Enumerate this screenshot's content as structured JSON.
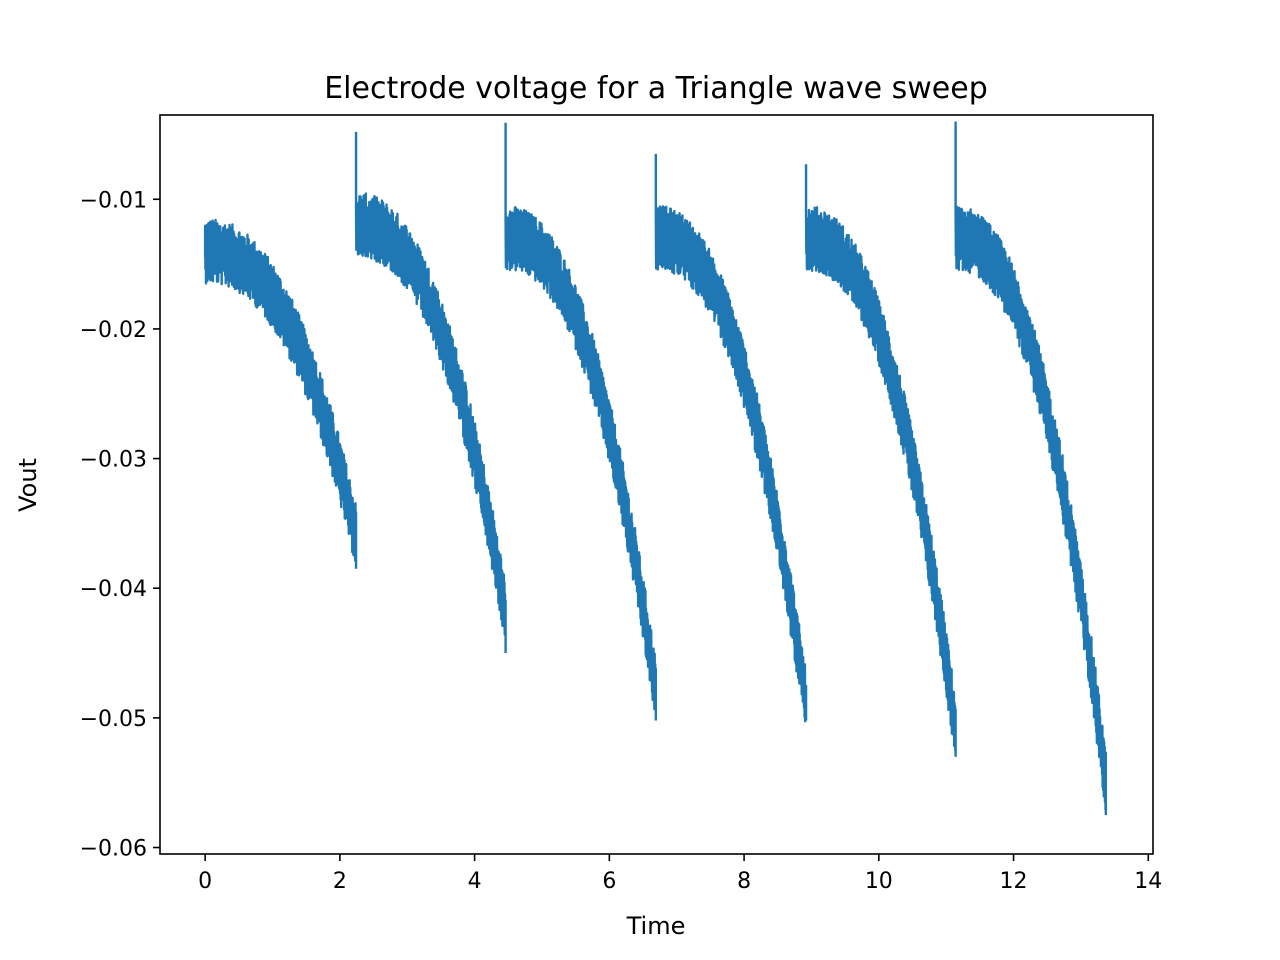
{
  "chart_data": {
    "type": "line",
    "title": "Electrode voltage for a Triangle wave sweep",
    "xlabel": "Time",
    "ylabel": "Vout",
    "xlim": [
      -0.67,
      14.07
    ],
    "ylim": [
      -0.0605,
      -0.0035
    ],
    "xticks": [
      0,
      2,
      4,
      6,
      8,
      10,
      12,
      14
    ],
    "xtick_labels": [
      "0",
      "2",
      "4",
      "6",
      "8",
      "10",
      "12",
      "14"
    ],
    "yticks": [
      -0.06,
      -0.05,
      -0.04,
      -0.03,
      -0.02,
      -0.01
    ],
    "ytick_labels": [
      "−0.06",
      "−0.05",
      "−0.04",
      "−0.03",
      "−0.02",
      "−0.01"
    ],
    "grid": false,
    "line_color": "#1f77b4",
    "series": [
      {
        "description": "Noisy decaying voltage per triangle-wave segment; each segment starts with a spike then decays until the next reset.",
        "segments": [
          {
            "t_start": 0.0,
            "t_end": 2.24,
            "v_spike": -0.0145,
            "v_start": -0.014,
            "v_end": -0.036,
            "v_min": -0.0385
          },
          {
            "t_start": 2.24,
            "t_end": 4.46,
            "v_spike": -0.0048,
            "v_start": -0.012,
            "v_end": -0.042,
            "v_min": -0.045
          },
          {
            "t_start": 4.46,
            "t_end": 6.69,
            "v_spike": -0.0041,
            "v_start": -0.013,
            "v_end": -0.048,
            "v_min": -0.0502
          },
          {
            "t_start": 6.69,
            "t_end": 8.92,
            "v_spike": -0.0065,
            "v_start": -0.013,
            "v_end": -0.049,
            "v_min": -0.0502
          },
          {
            "t_start": 8.92,
            "t_end": 11.14,
            "v_spike": -0.0073,
            "v_start": -0.013,
            "v_end": -0.051,
            "v_min": -0.053
          },
          {
            "t_start": 11.14,
            "t_end": 13.37,
            "v_spike": -0.004,
            "v_start": -0.013,
            "v_end": -0.055,
            "v_min": -0.0575
          }
        ],
        "noise_amplitude": 0.0025
      }
    ]
  }
}
